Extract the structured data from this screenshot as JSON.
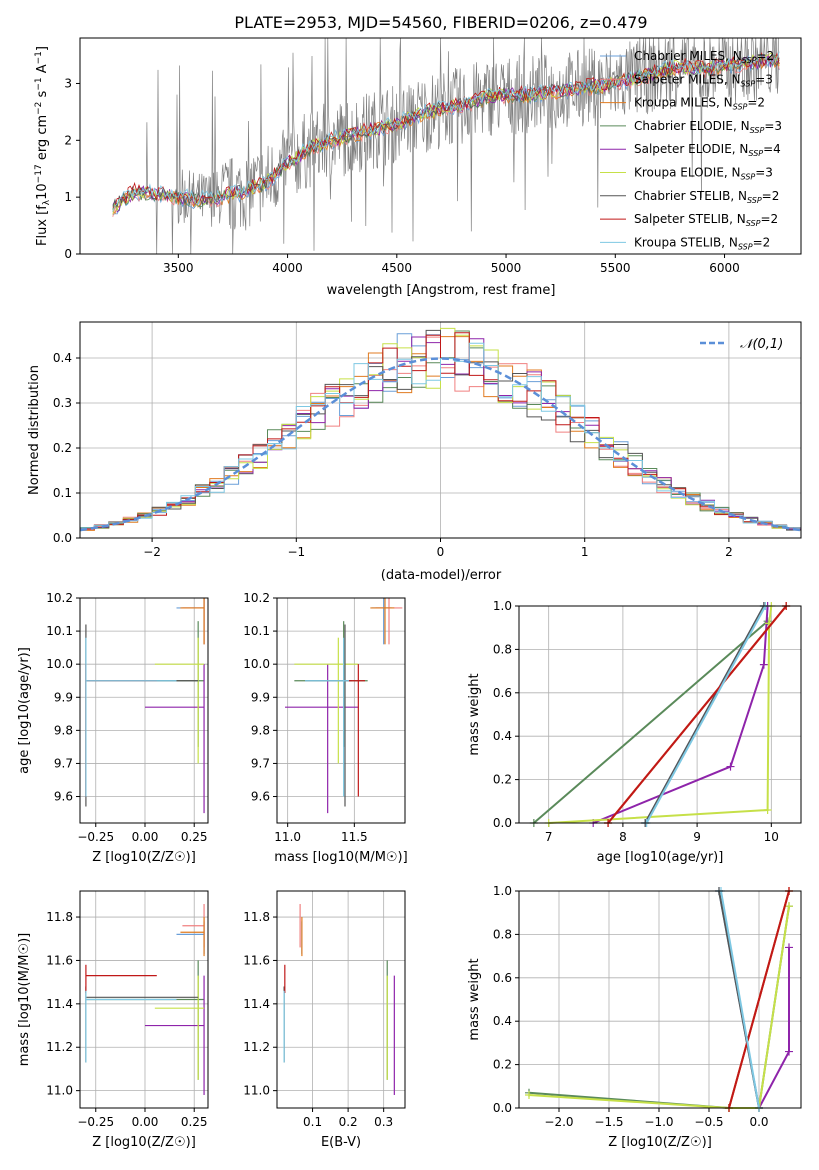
{
  "title": "PLATE=2953, MJD=54560, FIBERID=0206, z=0.479",
  "models": [
    {
      "label": "Chabrier MILES, N_SSP=2",
      "color": "#6a9fd8"
    },
    {
      "label": "Salpeter MILES, N_SSP=3",
      "color": "#f08080"
    },
    {
      "label": "Kroupa MILES, N_SSP=2",
      "color": "#e07b20"
    },
    {
      "label": "Chabrier ELODIE, N_SSP=3",
      "color": "#5a8a5a"
    },
    {
      "label": "Salpeter ELODIE, N_SSP=4",
      "color": "#8e24aa"
    },
    {
      "label": "Kroupa ELODIE, N_SSP=3",
      "color": "#c6e048"
    },
    {
      "label": "Chabrier STELIB, N_SSP=2",
      "color": "#555555"
    },
    {
      "label": "Salpeter STELIB, N_SSP=2",
      "color": "#c01818"
    },
    {
      "label": "Kroupa STELIB, N_SSP=2",
      "color": "#7ec8e3"
    }
  ],
  "data_color": "#808080",
  "chart_data": [
    {
      "id": "spectrum",
      "type": "line",
      "title": "PLATE=2953, MJD=54560, FIBERID=0206, z=0.479",
      "xlabel": "wavelength [Angstrom, rest frame]",
      "ylabel": "Flux [f_λ 10^-17 erg cm^-2 s^-1 A^-1]",
      "xlim": [
        3050,
        6350
      ],
      "ylim": [
        0,
        3.8
      ],
      "xticks": [
        3500,
        4000,
        4500,
        5000,
        5500,
        6000
      ],
      "yticks": [
        0,
        1,
        2,
        3
      ],
      "grid": false,
      "legend": "upper right",
      "model_curve": {
        "x": [
          3200,
          3300,
          3400,
          3500,
          3600,
          3700,
          3800,
          3900,
          4000,
          4100,
          4200,
          4300,
          4400,
          4500,
          4600,
          4700,
          4800,
          4900,
          5000,
          5100,
          5200,
          5300,
          5400,
          5500,
          5600,
          5700,
          5800,
          5900,
          6000,
          6100,
          6200
        ],
        "y": [
          0.8,
          1.1,
          1.05,
          1.0,
          0.95,
          1.0,
          1.1,
          1.25,
          1.6,
          1.85,
          2.0,
          2.1,
          2.2,
          2.3,
          2.45,
          2.55,
          2.6,
          2.75,
          2.8,
          2.8,
          2.85,
          2.9,
          2.95,
          3.0,
          3.1,
          3.2,
          3.3,
          3.25,
          3.3,
          3.35,
          3.4
        ]
      }
    },
    {
      "id": "residuals",
      "type": "histogram",
      "xlabel": "(data-model)/error",
      "ylabel": "Normed distribution",
      "xlim": [
        -2.5,
        2.5
      ],
      "ylim": [
        0,
        0.48
      ],
      "xticks": [
        -2,
        -1,
        0,
        1,
        2
      ],
      "yticks": [
        0.0,
        0.1,
        0.2,
        0.3,
        0.4
      ],
      "grid": true,
      "legend": "upper right",
      "reference_label": "𝒩(0,1)",
      "reference_color": "#5b8fd8"
    },
    {
      "id": "age_vs_Z",
      "type": "scatter",
      "xlabel": "Z [log10(Z/Z☉)]",
      "ylabel": "age [log10(age/yr)]",
      "xlim": [
        -0.33,
        0.32
      ],
      "ylim": [
        9.52,
        10.2
      ],
      "xticks": [
        -0.25,
        0.0,
        0.25
      ],
      "xtick_labels": [
        "−0.25",
        "0.00",
        "0.25"
      ],
      "yticks": [
        9.6,
        9.7,
        9.8,
        9.9,
        10.0,
        10.1,
        10.2
      ],
      "grid": true
    },
    {
      "id": "age_vs_mass",
      "type": "scatter",
      "xlabel": "mass [log10(M/M☉)]",
      "ylabel": "",
      "xlim": [
        10.92,
        11.88
      ],
      "ylim": [
        9.52,
        10.2
      ],
      "xticks": [
        11.0,
        11.5
      ],
      "xtick_labels": [
        "11.0",
        "11.5"
      ],
      "yticks": [
        9.6,
        9.7,
        9.8,
        9.9,
        10.0,
        10.1,
        10.2
      ],
      "grid": true
    },
    {
      "id": "massweight_vs_age",
      "type": "line",
      "xlabel": "age [log10(age/yr)]",
      "ylabel": "mass weight",
      "xlim": [
        6.6,
        10.4
      ],
      "ylim": [
        0,
        1
      ],
      "xticks": [
        7,
        8,
        9,
        10
      ],
      "yticks": [
        0.0,
        0.2,
        0.4,
        0.6,
        0.8,
        1.0
      ],
      "grid": true,
      "series": [
        {
          "model": 0,
          "x": [
            8.3,
            9.9
          ],
          "y": [
            0,
            1.0
          ]
        },
        {
          "model": 1,
          "x": [
            7.8,
            10.2
          ],
          "y": [
            0,
            1.0
          ]
        },
        {
          "model": 2,
          "x": [
            7.8,
            10.2
          ],
          "y": [
            0,
            1.0
          ]
        },
        {
          "model": 3,
          "x": [
            6.8,
            9.95
          ],
          "y": [
            0,
            0.93
          ]
        },
        {
          "model": 4,
          "x": [
            7.6,
            9.45,
            9.9,
            9.95
          ],
          "y": [
            0,
            0.26,
            0.73,
            1.0
          ]
        },
        {
          "model": 5,
          "x": [
            7.0,
            9.95,
            9.97,
            10.0
          ],
          "y": [
            0,
            0.06,
            0.92,
            1.0
          ]
        },
        {
          "model": 6,
          "x": [
            8.3,
            9.9
          ],
          "y": [
            0,
            1.0
          ]
        },
        {
          "model": 7,
          "x": [
            7.8,
            10.2
          ],
          "y": [
            0,
            1.0
          ]
        },
        {
          "model": 8,
          "x": [
            8.32,
            9.92
          ],
          "y": [
            0,
            1.0
          ]
        }
      ]
    },
    {
      "id": "mass_vs_Z",
      "type": "scatter",
      "xlabel": "Z [log10(Z/Z☉)]",
      "ylabel": "mass [log10(M/M☉)]",
      "xlim": [
        -0.33,
        0.32
      ],
      "ylim": [
        10.92,
        11.92
      ],
      "xticks": [
        -0.25,
        0.0,
        0.25
      ],
      "xtick_labels": [
        "−0.25",
        "0.00",
        "0.25"
      ],
      "yticks": [
        11.0,
        11.2,
        11.4,
        11.6,
        11.8
      ],
      "grid": true
    },
    {
      "id": "mass_vs_ebv",
      "type": "scatter",
      "xlabel": "E(B-V)",
      "ylabel": "",
      "xlim": [
        0.0,
        0.36
      ],
      "ylim": [
        10.92,
        11.92
      ],
      "xticks": [
        0.1,
        0.2,
        0.3
      ],
      "xtick_labels": [
        "0.1",
        "0.2",
        "0.3"
      ],
      "yticks": [
        11.0,
        11.2,
        11.4,
        11.6,
        11.8
      ],
      "grid": true
    },
    {
      "id": "massweight_vs_Z",
      "type": "line",
      "xlabel": "Z [log10(Z/Z☉)]",
      "ylabel": "mass weight",
      "xlim": [
        -2.4,
        0.42
      ],
      "ylim": [
        0,
        1
      ],
      "xticks": [
        -2.0,
        -1.5,
        -1.0,
        -0.5,
        0.0
      ],
      "xtick_labels": [
        "−2.0",
        "−1.5",
        "−1.0",
        "−0.5",
        "0.0"
      ],
      "yticks": [
        0.0,
        0.2,
        0.4,
        0.6,
        0.8,
        1.0
      ],
      "grid": true,
      "series": [
        {
          "model": 0,
          "x": [
            -0.4,
            0.0
          ],
          "y": [
            1.0,
            0
          ]
        },
        {
          "model": 1,
          "x": [
            -0.3,
            0.3
          ],
          "y": [
            0,
            1.0
          ]
        },
        {
          "model": 2,
          "x": [
            -0.3,
            0.3
          ],
          "y": [
            0,
            1.0
          ]
        },
        {
          "model": 3,
          "x": [
            -2.3,
            -0.3,
            0.0,
            0.3
          ],
          "y": [
            0.07,
            0,
            0,
            0.93
          ]
        },
        {
          "model": 4,
          "x": [
            0.0,
            0.3,
            0.3
          ],
          "y": [
            0,
            0.26,
            0.74
          ]
        },
        {
          "model": 5,
          "x": [
            -2.3,
            -0.3,
            0.0,
            0.3
          ],
          "y": [
            0.06,
            0,
            0,
            0.93
          ]
        },
        {
          "model": 6,
          "x": [
            -0.4,
            0.0
          ],
          "y": [
            1.0,
            0
          ]
        },
        {
          "model": 7,
          "x": [
            -0.3,
            0.3
          ],
          "y": [
            0,
            1.0
          ]
        },
        {
          "model": 8,
          "x": [
            -0.38,
            0.0
          ],
          "y": [
            1.0,
            0
          ]
        }
      ]
    }
  ],
  "points": [
    {
      "model": 0,
      "Z": 0.3,
      "Z_lo": 0.16,
      "Z_hi": 0.3,
      "age": 10.17,
      "age_lo": 10.06,
      "age_hi": 10.2,
      "mass": 11.72,
      "mass_lo": 11.63,
      "mass_hi": 11.78,
      "ebv": 0.07
    },
    {
      "model": 1,
      "Z": 0.3,
      "Z_lo": 0.19,
      "Z_hi": 0.3,
      "age": 10.17,
      "age_lo": 10.06,
      "age_hi": 10.2,
      "mass": 11.76,
      "mass_lo": 11.66,
      "mass_hi": 11.86,
      "ebv": 0.065
    },
    {
      "model": 2,
      "Z": 0.3,
      "Z_lo": 0.18,
      "Z_hi": 0.3,
      "age": 10.17,
      "age_lo": 10.06,
      "age_hi": 10.2,
      "mass": 11.73,
      "mass_lo": 11.62,
      "mass_hi": 11.8,
      "ebv": 0.07
    },
    {
      "model": 3,
      "Z": 0.27,
      "Z_lo": -0.3,
      "Z_hi": 0.3,
      "age": 9.95,
      "age_lo": 9.75,
      "age_hi": 10.13,
      "mass": 11.42,
      "mass_lo": 11.05,
      "mass_hi": 11.6,
      "ebv": 0.31
    },
    {
      "model": 4,
      "Z": 0.3,
      "Z_lo": 0.0,
      "Z_hi": 0.3,
      "age": 9.87,
      "age_lo": 9.55,
      "age_hi": 10.0,
      "mass": 11.3,
      "mass_lo": 10.98,
      "mass_hi": 11.53,
      "ebv": 0.33
    },
    {
      "model": 5,
      "Z": 0.27,
      "Z_lo": 0.05,
      "Z_hi": 0.3,
      "age": 10.0,
      "age_lo": 9.7,
      "age_hi": 10.08,
      "mass": 11.38,
      "mass_lo": 11.05,
      "mass_hi": 11.53,
      "ebv": 0.31
    },
    {
      "model": 6,
      "Z": -0.3,
      "Z_lo": -0.3,
      "Z_hi": 0.27,
      "age": 9.95,
      "age_lo": 9.57,
      "age_hi": 10.12,
      "mass": 11.43,
      "mass_lo": 11.13,
      "mass_hi": 11.48,
      "ebv": 0.02
    },
    {
      "model": 7,
      "Z": -0.3,
      "Z_lo": -0.3,
      "Z_hi": 0.06,
      "age": 9.95,
      "age_lo": 9.6,
      "age_hi": 10.0,
      "mass": 11.53,
      "mass_lo": 11.45,
      "mass_hi": 11.58,
      "ebv": 0.022
    },
    {
      "model": 8,
      "Z": -0.3,
      "Z_lo": -0.3,
      "Z_hi": 0.16,
      "age": 9.95,
      "age_lo": 9.6,
      "age_hi": 10.08,
      "mass": 11.42,
      "mass_lo": 11.13,
      "mass_hi": 11.46,
      "ebv": 0.02
    }
  ]
}
